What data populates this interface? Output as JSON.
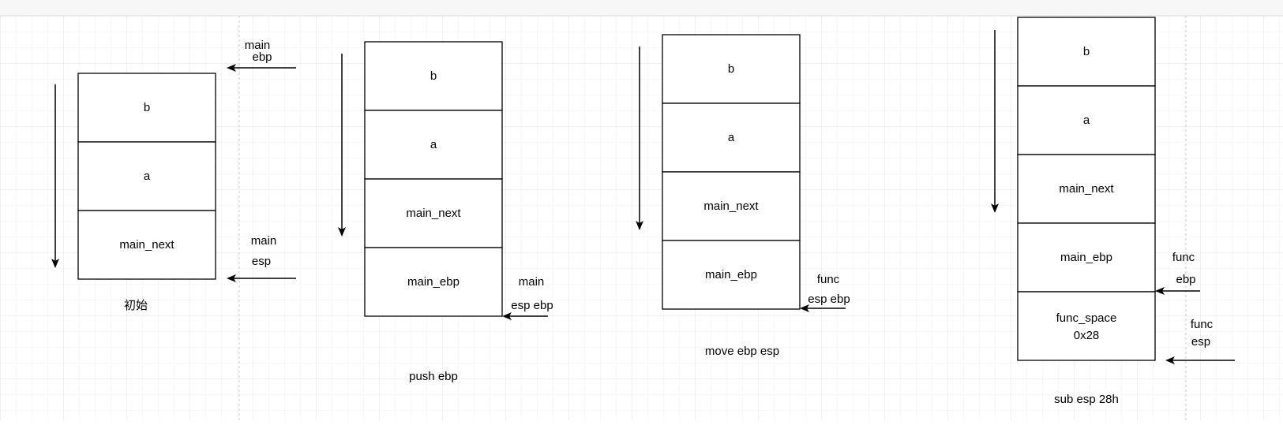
{
  "colors": {
    "grid": "#e9e9e9",
    "top_bar": "#f7f7f7",
    "stroke": "#000000"
  },
  "guide_lines": "dashed vertical guides",
  "stacks": [
    {
      "name": "initial",
      "cells": [
        "b",
        "a",
        "main_next"
      ],
      "caption": "初始",
      "pointers": [
        {
          "line1": "main",
          "line2": "ebp"
        },
        {
          "line1": "main",
          "line2": "esp"
        }
      ]
    },
    {
      "name": "push-ebp",
      "cells": [
        "b",
        "a",
        "main_next",
        "main_ebp"
      ],
      "caption": "push ebp",
      "pointers": [
        {
          "line1": "main",
          "line2": "esp ebp"
        }
      ]
    },
    {
      "name": "move-ebp-esp",
      "cells": [
        "b",
        "a",
        "main_next",
        "main_ebp"
      ],
      "caption": "move ebp esp",
      "pointers": [
        {
          "line1": "func",
          "line2": "esp ebp"
        }
      ]
    },
    {
      "name": "sub-esp",
      "cells": [
        "b",
        "a",
        "main_next",
        "main_ebp",
        "func_space",
        "0x28"
      ],
      "caption": "sub esp 28h",
      "pointers": [
        {
          "line1": "func",
          "line2": "ebp"
        },
        {
          "line1": "func",
          "line2": "esp"
        }
      ]
    }
  ]
}
